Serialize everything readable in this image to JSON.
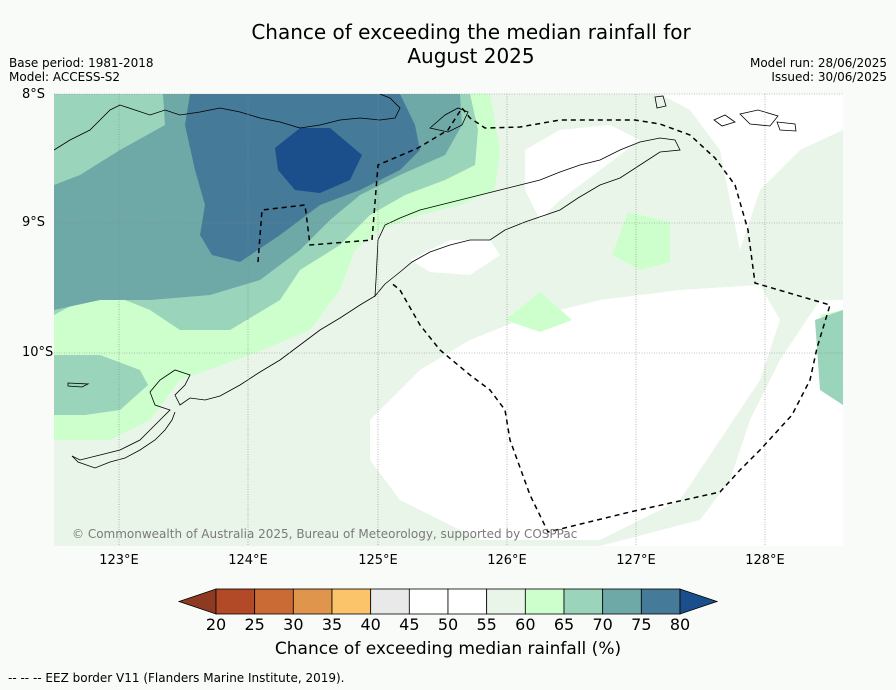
{
  "title_line1": "Chance of exceeding the median rainfall for",
  "title_line2": "August 2025",
  "meta_left": [
    "Base period: 1981-2018",
    "Model: ACCESS-S2"
  ],
  "meta_right": [
    "Model run: 28/06/2025",
    "Issued: 30/06/2025"
  ],
  "lat_labels": [
    "8°S",
    "9°S",
    "10°S"
  ],
  "lon_labels": [
    "123°E",
    "124°E",
    "125°E",
    "126°E",
    "127°E",
    "128°E"
  ],
  "copyright": "© Commonwealth of Australia 2025, Bureau of Meteorology, supported by COSPPac",
  "colorbar": {
    "label": "Chance of exceeding median rainfall (%)",
    "ticks": [
      "20",
      "25",
      "30",
      "35",
      "40",
      "45",
      "50",
      "55",
      "60",
      "65",
      "70",
      "75",
      "80"
    ],
    "colors": [
      "#8e3a22",
      "#b24a28",
      "#ca6a34",
      "#e0954c",
      "#fbc46a",
      "#e9e9e9",
      "#ffffff",
      "#ffffff",
      "#eaf5ea",
      "#ccffcc",
      "#99d4bb",
      "#6ea9a8",
      "#457a98",
      "#1b4f8b"
    ]
  },
  "footer": "--  --  -- EEZ border V11 (Flanders Marine Institute, 2019)."
}
